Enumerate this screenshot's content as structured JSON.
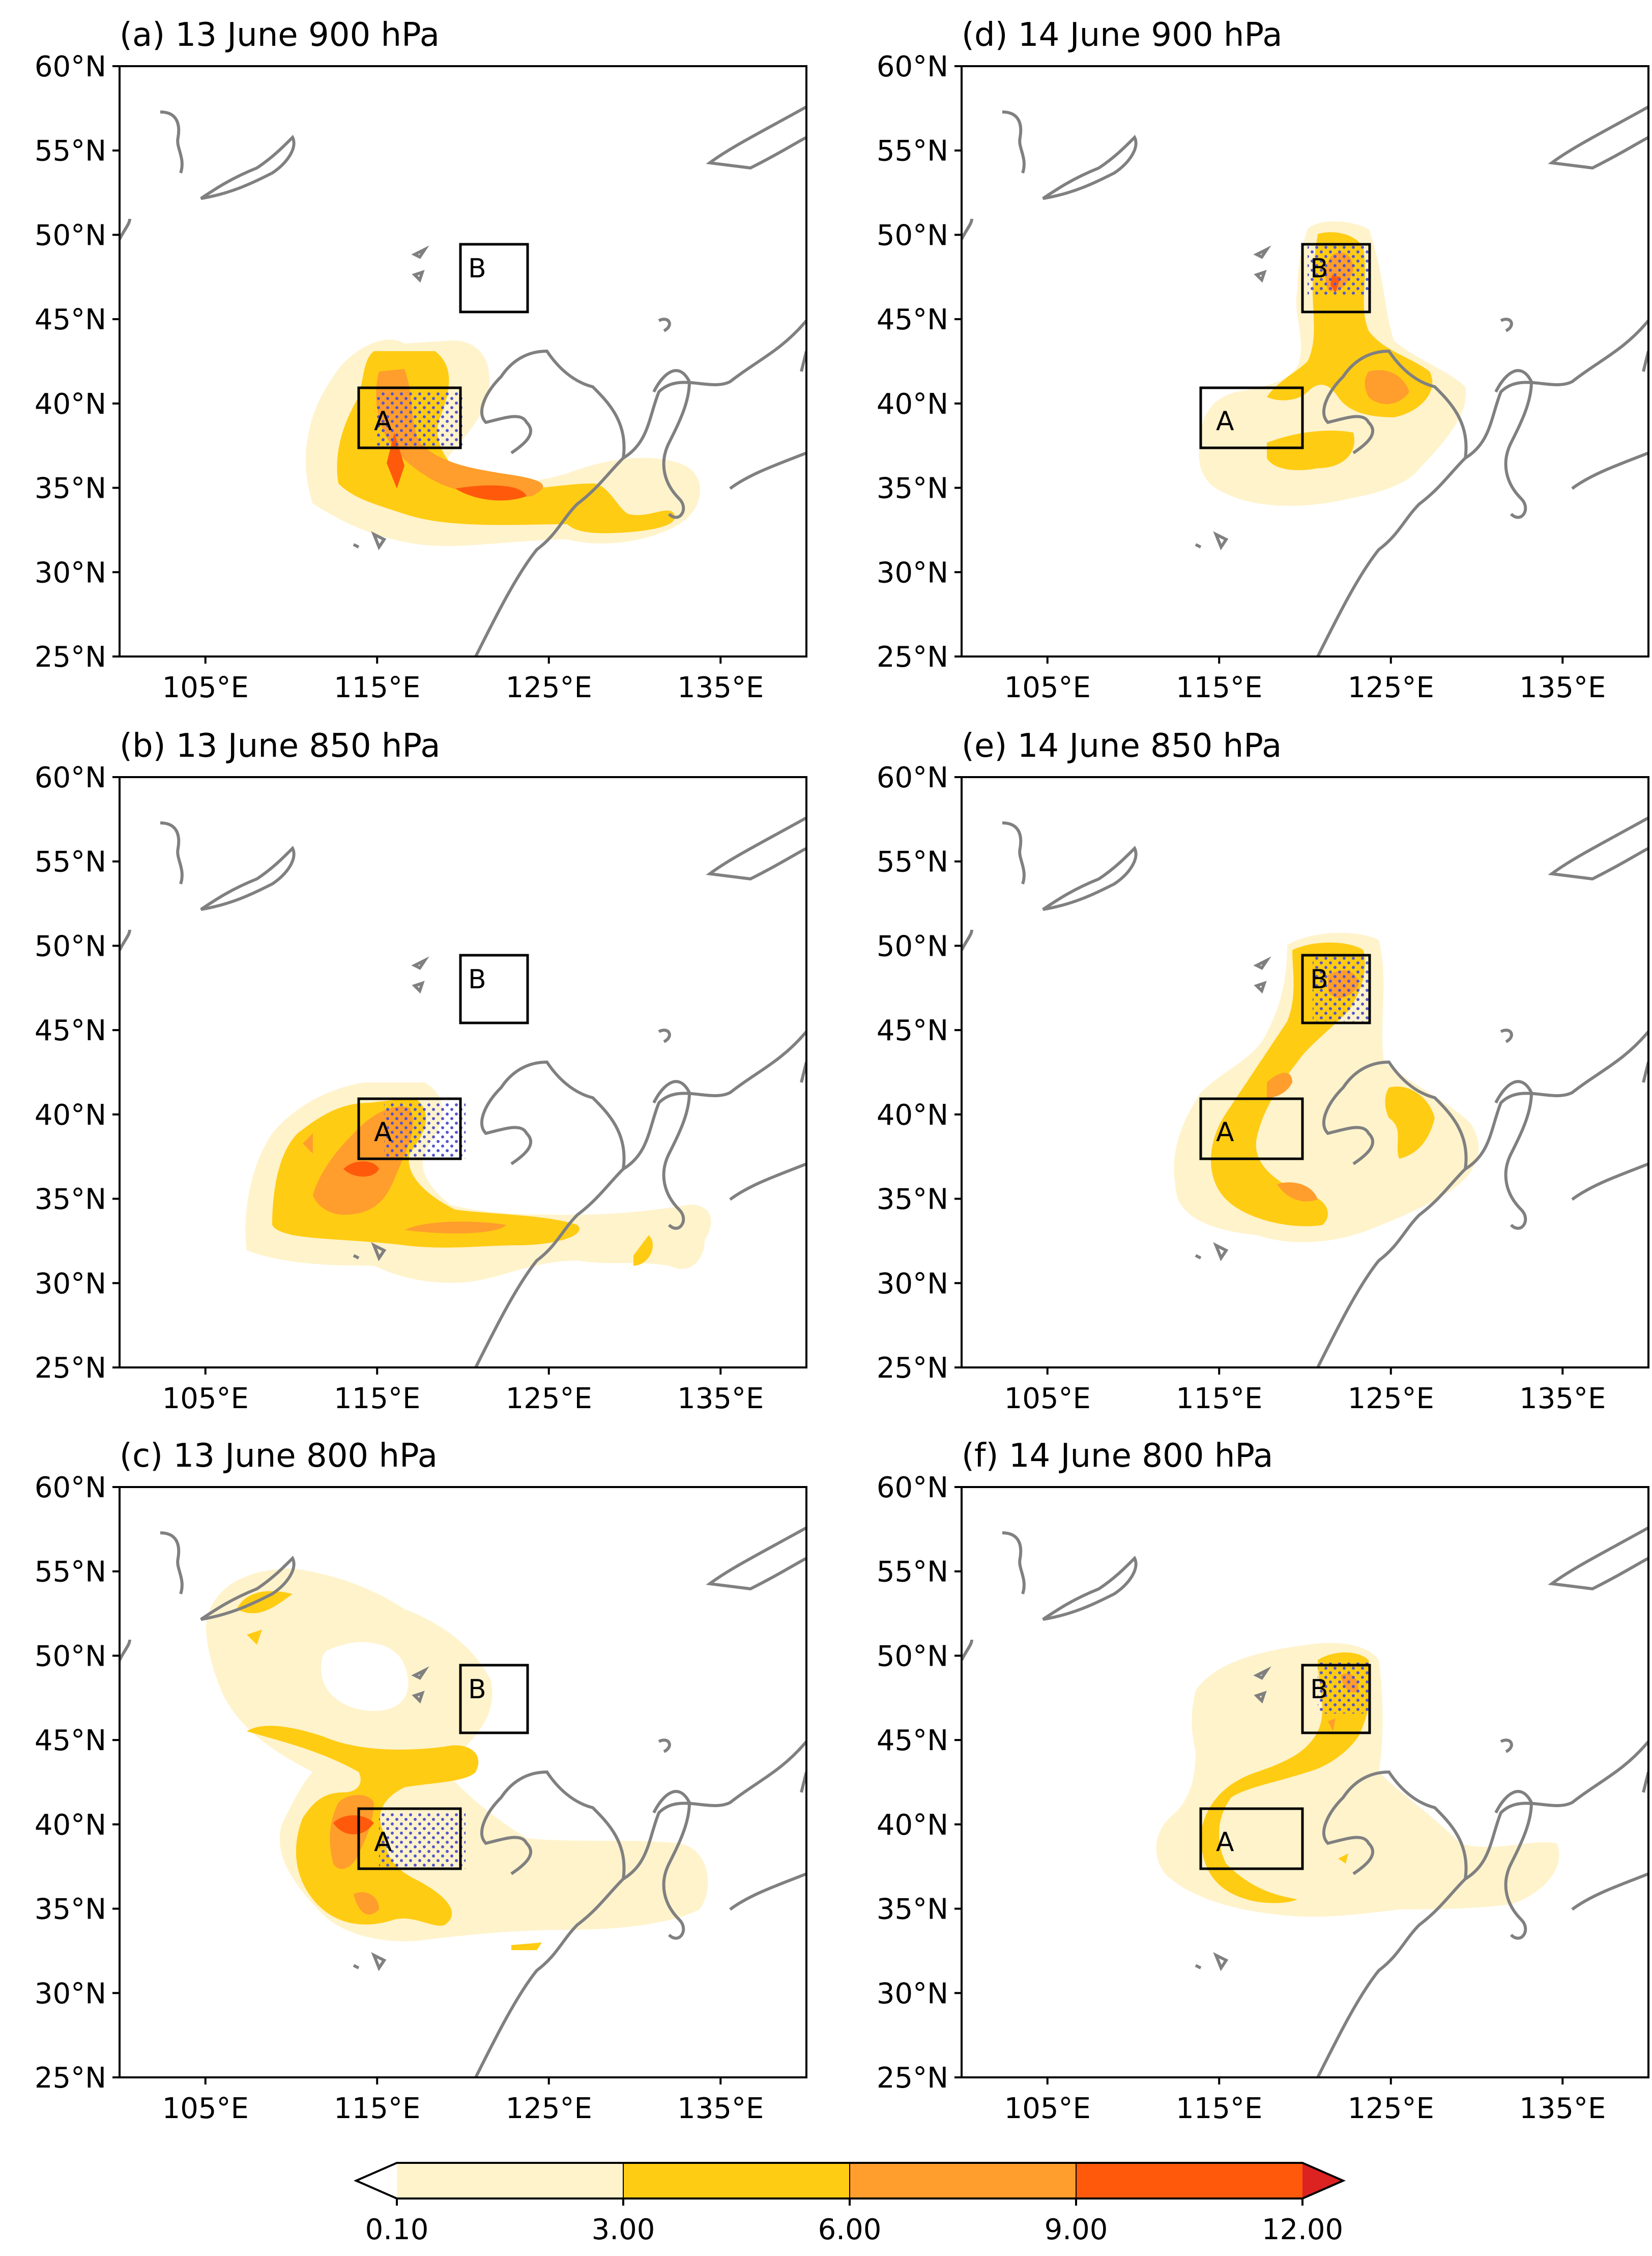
{
  "panels": [
    {
      "id": "a",
      "title": "(a) 13 June 900 hPa"
    },
    {
      "id": "b",
      "title": "(b) 13 June 850 hPa"
    },
    {
      "id": "c",
      "title": "(c) 13 June 800 hPa"
    },
    {
      "id": "d",
      "title": "(d) 14 June 900 hPa"
    },
    {
      "id": "e",
      "title": "(e) 14 June 850 hPa"
    },
    {
      "id": "f",
      "title": "(f) 14 June 800 hPa"
    }
  ],
  "axes": {
    "lon_range": [
      100,
      140
    ],
    "lat_range": [
      25,
      60
    ],
    "lon_ticks": [
      105,
      115,
      125,
      135
    ],
    "lat_ticks": [
      25,
      30,
      35,
      40,
      45,
      50,
      55,
      60
    ],
    "lon_tick_labels": [
      "105°E",
      "115°E",
      "125°E",
      "135°E"
    ],
    "lat_tick_labels": [
      "25°N",
      "30°N",
      "35°N",
      "40°N",
      "45°N",
      "50°N",
      "55°N",
      "60°N"
    ]
  },
  "regions": [
    {
      "label": "A",
      "lon_min": 114,
      "lon_max": 120,
      "lat_min": 37.5,
      "lat_max": 41
    },
    {
      "label": "B",
      "lon_min": 120,
      "lon_max": 124,
      "lat_min": 45.5,
      "lat_max": 49.5
    }
  ],
  "colorbar": {
    "levels": [
      "0.10",
      "3.00",
      "6.00",
      "9.00",
      "12.00"
    ],
    "colors": [
      "#fff3cc",
      "#ffcc14",
      "#ff9d2d",
      "#ff5a0b",
      "#dd2222"
    ]
  },
  "colors": {
    "coastline": "#808080",
    "frame": "#000000",
    "stipple": "#5555cc"
  }
}
